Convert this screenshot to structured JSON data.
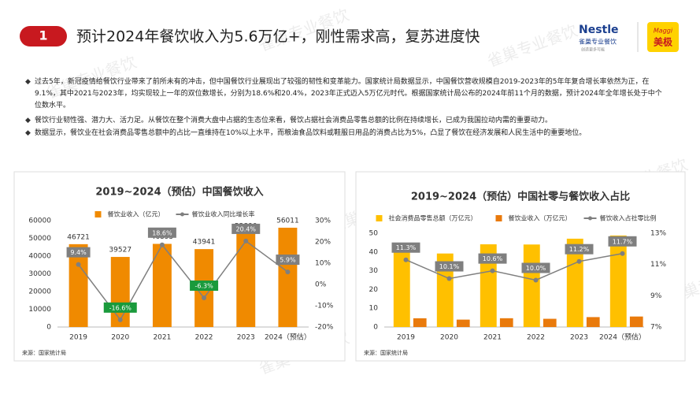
{
  "watermark": "雀巢专业餐饮",
  "header": {
    "number": "1",
    "title": "预计2024年餐饮收入为5.6万亿+，刚性需求高，复苏进度快"
  },
  "logos": {
    "nestle": "Nestle",
    "brand": "雀巢专业餐饮",
    "slogan": "创造更多可能",
    "maggi": "Maggi",
    "maggi_cn": "美极"
  },
  "bullets": [
    "过去5年，新冠疫情给餐饮行业带来了前所未有的冲击，但中国餐饮行业展现出了较强的韧性和变革能力。国家统计局数据显示，中国餐饮营收规模自2019-2023年的5年年复合增长率依然为正，在9.1%，其中2021与2023年，均实现较上一年的双位数增长，分别为18.6%和20.4%，2023年正式迈入5万亿元时代。根据国家统计局公布的2024年前11个月的数据，预计2024年全年增长处于中个位数水平。",
    "餐饮行业韧性强、潜力大、活力足。从餐饮在整个消费大盘中占据的生态位来看，餐饮占据社会消费品零售总额的比例在持续增长，已成为我国拉动内需的重要动力。",
    "数据显示，餐饮业在社会消费品零售总额中的占比一直维持在10%以上水平，而粮油食品饮料或鞋服日用品的消费占比为5%，凸显了餐饮在经济发展和人民生活中的重要地位。"
  ],
  "chart_data": [
    {
      "type": "bar",
      "title": "2019~2024（预估）中国餐饮收入",
      "source": "来源：国家统计局",
      "categories": [
        "2019",
        "2020",
        "2021",
        "2022",
        "2023",
        "2024（预估）"
      ],
      "series": [
        {
          "name": "餐饮业收入（亿元）",
          "type": "bar",
          "color": "#f08a00",
          "data_labels": true,
          "values": [
            46721,
            39527,
            46895,
            43941,
            52890,
            56011
          ]
        },
        {
          "name": "餐饮业收入同比增长率",
          "type": "line",
          "axis": "y2",
          "color": "#7f7f7f",
          "values": [
            9.4,
            -16.6,
            18.6,
            -6.3,
            20.4,
            5.9
          ],
          "value_labels": [
            "9.4%",
            "-16.6%",
            "18.6%",
            "-6.3%",
            "20.4%",
            "5.9%"
          ],
          "label_colors": [
            "#7f7f7f",
            "#1a9a3c",
            "#7f7f7f",
            "#1a9a3c",
            "#7f7f7f",
            "#7f7f7f"
          ]
        }
      ],
      "ylim": [
        0,
        60000
      ],
      "yticks": [
        0,
        10000,
        20000,
        30000,
        40000,
        50000,
        60000
      ],
      "y2lim": [
        -20,
        30
      ],
      "y2ticks": [
        {
          "value": -20,
          "label": "-20%"
        },
        {
          "value": -10,
          "label": "-10%"
        },
        {
          "value": 0,
          "label": "0%"
        },
        {
          "value": 10,
          "label": "10%"
        },
        {
          "value": 20,
          "label": "20%"
        },
        {
          "value": 30,
          "label": "30%"
        }
      ]
    },
    {
      "type": "bar",
      "title": "2019~2024（预估）中国社零与餐饮收入占比",
      "source": "来源：国家统计局",
      "categories": [
        "2019",
        "2020",
        "2021",
        "2022",
        "2023",
        "2024（预估）"
      ],
      "series": [
        {
          "name": "社会消费品零售总额（万亿元）",
          "type": "bar",
          "color": "#ffc000",
          "values": [
            41.2,
            39.2,
            44.1,
            44.0,
            47.1,
            48.8
          ]
        },
        {
          "name": "餐饮业收入（万亿元）",
          "type": "bar",
          "color": "#e97a0c",
          "values": [
            4.67,
            3.95,
            4.69,
            4.39,
            5.29,
            5.6
          ]
        },
        {
          "name": "餐饮收入占社零比例",
          "type": "line",
          "axis": "y2",
          "color": "#7f7f7f",
          "values": [
            11.3,
            10.1,
            10.6,
            10.0,
            11.2,
            11.7
          ],
          "value_labels": [
            "11.3%",
            "10.1%",
            "10.6%",
            "10.0%",
            "11.2%",
            "11.7%"
          ],
          "label_colors": [
            "#7f7f7f",
            "#7f7f7f",
            "#7f7f7f",
            "#7f7f7f",
            "#7f7f7f",
            "#7f7f7f"
          ]
        }
      ],
      "ylim": [
        0,
        50
      ],
      "yticks": [
        0,
        10,
        20,
        30,
        40,
        50
      ],
      "y2lim": [
        7,
        13
      ],
      "y2ticks": [
        {
          "value": 7,
          "label": "7%"
        },
        {
          "value": 9,
          "label": "9%"
        },
        {
          "value": 11,
          "label": "11%"
        },
        {
          "value": 13,
          "label": "13%"
        }
      ]
    }
  ]
}
